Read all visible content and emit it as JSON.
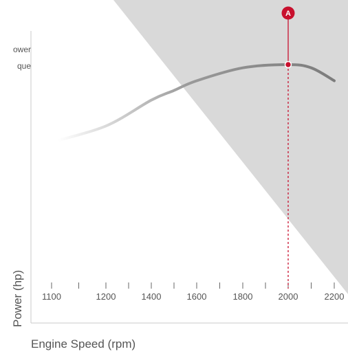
{
  "chart_data": {
    "type": "line",
    "xlabel": "Engine Speed (rpm)",
    "ylabel": "Power (hp)",
    "tick_labels": [
      "1100",
      "1200",
      "1400",
      "1600",
      "1800",
      "2000",
      "2200"
    ],
    "legend": {
      "power": "ower",
      "torque": "que"
    },
    "series": [
      {
        "x": [
          1100,
          1200,
          1400,
          1500,
          1600,
          1800,
          2000,
          2100,
          2200
        ],
        "y": [
          0.56,
          0.61,
          0.69,
          0.72,
          0.75,
          0.79,
          0.8,
          0.79,
          0.75
        ]
      }
    ],
    "marker": {
      "label": "A",
      "x": 2000
    },
    "grid": false,
    "colors": {
      "curve": "#8e8e8e",
      "marker": "#c8102e",
      "shade": "#d9d9d9",
      "axis": "#c8c8c8",
      "text": "#555555"
    }
  }
}
